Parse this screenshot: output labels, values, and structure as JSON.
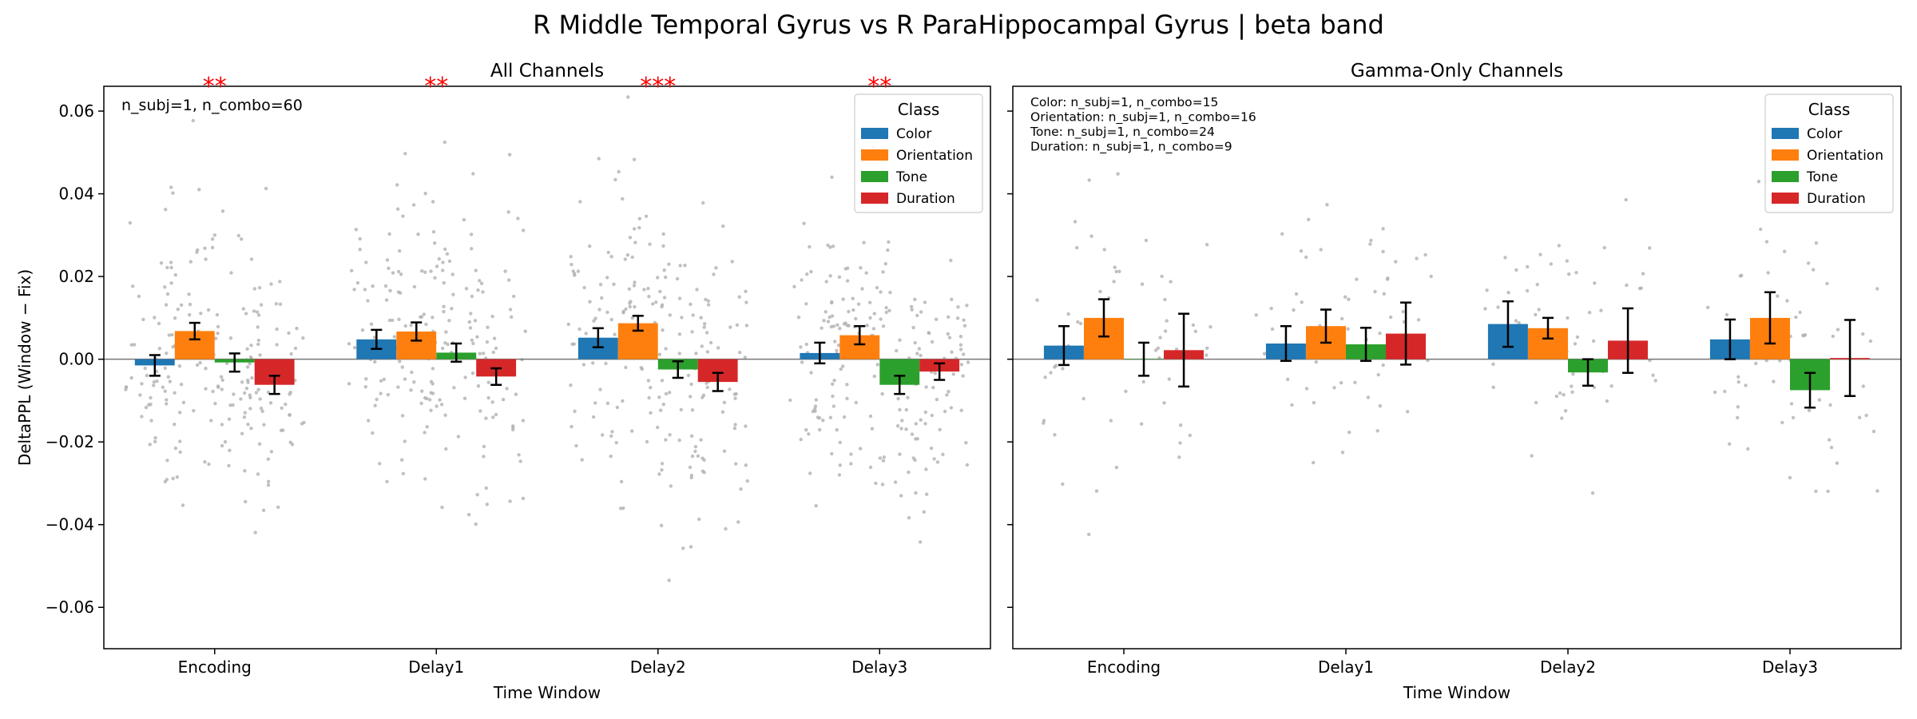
{
  "title": "R Middle Temporal Gyrus vs R ParaHippocampal Gyrus  |  beta band",
  "colors": {
    "Color": "#1f77b4",
    "Orientation": "#ff7f0e",
    "Tone": "#2ca02c",
    "Duration": "#d62728",
    "scatter": "#b0b0b0",
    "stars": "#ff0000"
  },
  "chart_data": [
    {
      "type": "bar",
      "title": "All Channels",
      "xlabel": "Time Window",
      "ylabel": "DeltaPPL (Window − Fix)",
      "ylim": [
        -0.07,
        0.066
      ],
      "yticks": [
        -0.06,
        -0.04,
        -0.02,
        0.0,
        0.02,
        0.04,
        0.06
      ],
      "ytick_labels": [
        "−0.06",
        "−0.04",
        "−0.02",
        "0.00",
        "0.02",
        "0.04",
        "0.06"
      ],
      "categories": [
        "Encoding",
        "Delay1",
        "Delay2",
        "Delay3"
      ],
      "legend_title": "Class",
      "legend_position": "top-right",
      "annotation": "n_subj=1, n_combo=60",
      "significance": [
        "**",
        "**",
        "***",
        "**"
      ],
      "series": [
        {
          "name": "Color",
          "values": [
            -0.0015,
            0.0048,
            0.0052,
            0.0015
          ],
          "errors": [
            0.0025,
            0.0023,
            0.0023,
            0.0025
          ]
        },
        {
          "name": "Orientation",
          "values": [
            0.0068,
            0.0067,
            0.0087,
            0.0058
          ],
          "errors": [
            0.002,
            0.0022,
            0.0018,
            0.0022
          ]
        },
        {
          "name": "Tone",
          "values": [
            -0.0008,
            0.0016,
            -0.0025,
            -0.0062
          ],
          "errors": [
            0.0022,
            0.0022,
            0.002,
            0.0022
          ]
        },
        {
          "name": "Duration",
          "values": [
            -0.0062,
            -0.0042,
            -0.0055,
            -0.003
          ],
          "errors": [
            0.0022,
            0.002,
            0.0022,
            0.002
          ]
        }
      ]
    },
    {
      "type": "bar",
      "title": "Gamma-Only Channels",
      "xlabel": "Time Window",
      "ylabel": "",
      "ylim": [
        -0.07,
        0.066
      ],
      "categories": [
        "Encoding",
        "Delay1",
        "Delay2",
        "Delay3"
      ],
      "legend_title": "Class",
      "legend_position": "top-right",
      "annotation_lines": [
        "Color: n_subj=1, n_combo=15",
        "Orientation: n_subj=1, n_combo=16",
        "Tone: n_subj=1, n_combo=24",
        "Duration: n_subj=1, n_combo=9"
      ],
      "series": [
        {
          "name": "Color",
          "values": [
            0.0033,
            0.0038,
            0.0085,
            0.0048
          ],
          "errors": [
            0.0047,
            0.0042,
            0.0055,
            0.0048
          ]
        },
        {
          "name": "Orientation",
          "values": [
            0.01,
            0.008,
            0.0075,
            0.01
          ],
          "errors": [
            0.0045,
            0.004,
            0.0025,
            0.0062
          ]
        },
        {
          "name": "Tone",
          "values": [
            0.0,
            0.0036,
            -0.0032,
            -0.0075
          ],
          "errors": [
            0.004,
            0.004,
            0.0032,
            0.0042
          ]
        },
        {
          "name": "Duration",
          "values": [
            0.0022,
            0.0062,
            0.0045,
            0.0003
          ],
          "errors": [
            0.0088,
            0.0075,
            0.0078,
            0.0092
          ]
        }
      ]
    }
  ]
}
